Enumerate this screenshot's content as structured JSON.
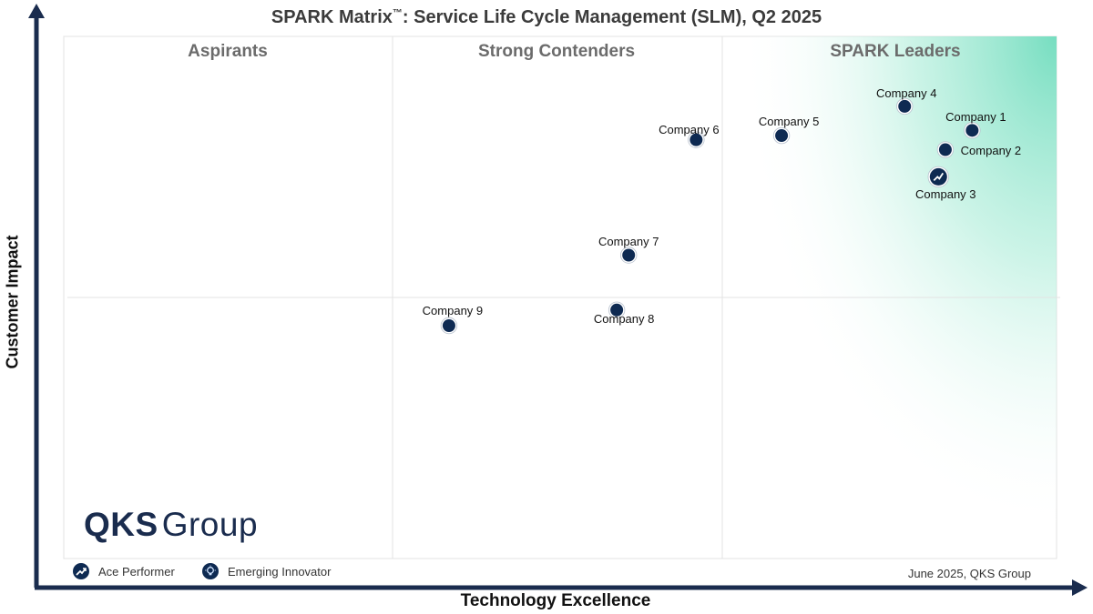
{
  "title": {
    "main": "SPARK Matrix",
    "trademark": "™",
    "tail": ": Service Life Cycle Management (SLM), Q2 2025"
  },
  "chart_data": {
    "type": "scatter",
    "xlabel": "Technology Excellence",
    "ylabel": "Customer Impact",
    "quadrant_labels": [
      "Aspirants",
      "Strong Contenders",
      "SPARK Leaders"
    ],
    "points": [
      {
        "name": "Company 1",
        "x": 0.915,
        "y": 0.82,
        "marker": "dot"
      },
      {
        "name": "Company 2",
        "x": 0.888,
        "y": 0.783,
        "marker": "dot"
      },
      {
        "name": "Company 3",
        "x": 0.881,
        "y": 0.731,
        "marker": "ace-performer"
      },
      {
        "name": "Company 4",
        "x": 0.847,
        "y": 0.866,
        "marker": "dot"
      },
      {
        "name": "Company 5",
        "x": 0.723,
        "y": 0.81,
        "marker": "dot"
      },
      {
        "name": "Company 6",
        "x": 0.637,
        "y": 0.802,
        "marker": "dot"
      },
      {
        "name": "Company 7",
        "x": 0.569,
        "y": 0.581,
        "marker": "dot"
      },
      {
        "name": "Company 8",
        "x": 0.557,
        "y": 0.476,
        "marker": "dot"
      },
      {
        "name": "Company 9",
        "x": 0.388,
        "y": 0.446,
        "marker": "dot"
      }
    ],
    "legend": [
      {
        "label": "Ace Performer",
        "icon": "trend-up-icon"
      },
      {
        "label": "Emerging Innovator",
        "icon": "lightbulb-icon"
      }
    ],
    "colors": {
      "marker": "#0e2a52",
      "leaders_gradient": "#7fe0c4",
      "axis": "#1a2c4e",
      "grid": "#e3e3e3"
    }
  },
  "logo": {
    "part1": "QKS",
    "part2": "Group"
  },
  "footnote": "June 2025, QKS Group"
}
